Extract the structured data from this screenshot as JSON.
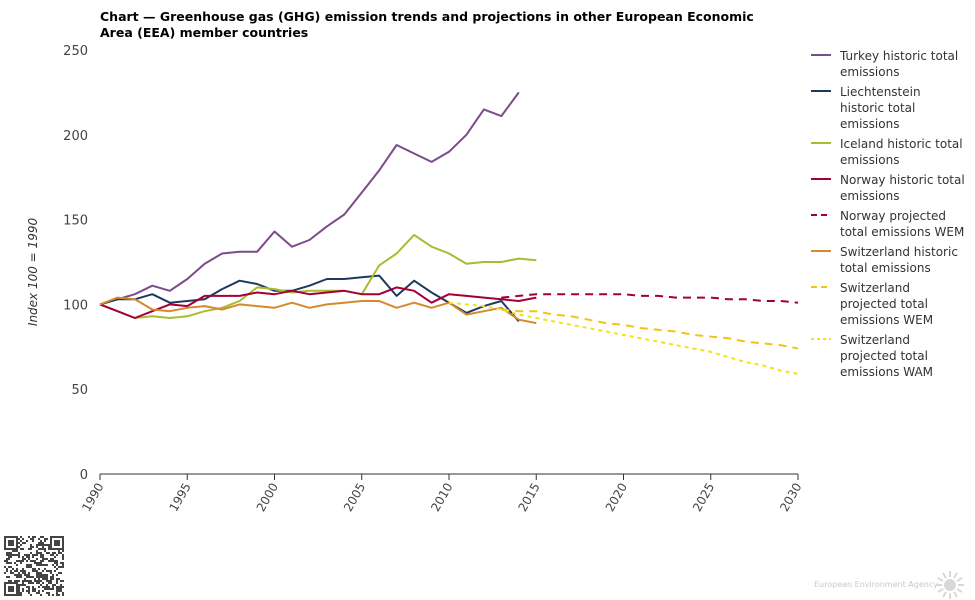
{
  "title": "Chart — Greenhouse gas (GHG) emission trends and projections in other European Economic Area (EEA) member countries",
  "footer": {
    "agency": "European Environment Agency"
  },
  "chart_data": {
    "type": "line",
    "title": "Chart — Greenhouse gas (GHG) emission trends and projections in other European Economic Area (EEA) member countries",
    "xlabel": "",
    "ylabel": "Index 100 = 1990",
    "xlim": [
      1990,
      2030
    ],
    "ylim": [
      0,
      250
    ],
    "xticks": [
      1990,
      1995,
      2000,
      2005,
      2010,
      2015,
      2020,
      2025,
      2030
    ],
    "yticks": [
      0,
      50,
      100,
      150,
      200,
      250
    ],
    "legend_position": "right",
    "grid": false,
    "series": [
      {
        "name": "Turkey historic total emissions",
        "color": "#7b4b8a",
        "style": "solid",
        "x": [
          1990,
          1991,
          1992,
          1993,
          1994,
          1995,
          1996,
          1997,
          1998,
          1999,
          2000,
          2001,
          2002,
          2003,
          2004,
          2005,
          2006,
          2007,
          2008,
          2009,
          2010,
          2011,
          2012,
          2013,
          2014
        ],
        "y": [
          100,
          103,
          106,
          111,
          108,
          115,
          124,
          130,
          131,
          131,
          143,
          134,
          138,
          146,
          153,
          166,
          179,
          194,
          189,
          184,
          190,
          200,
          215,
          211,
          225
        ]
      },
      {
        "name": "Liechtenstein historic total emissions",
        "color": "#1f3a5f",
        "style": "solid",
        "x": [
          1990,
          1991,
          1992,
          1993,
          1994,
          1995,
          1996,
          1997,
          1998,
          1999,
          2000,
          2001,
          2002,
          2003,
          2004,
          2005,
          2006,
          2007,
          2008,
          2009,
          2010,
          2011,
          2012,
          2013,
          2014
        ],
        "y": [
          100,
          103,
          103,
          106,
          101,
          102,
          103,
          109,
          114,
          112,
          108,
          108,
          111,
          115,
          115,
          116,
          117,
          105,
          114,
          107,
          101,
          95,
          99,
          102,
          90
        ]
      },
      {
        "name": "Iceland historic total emissions",
        "color": "#a8bc2e",
        "style": "solid",
        "x": [
          1990,
          1991,
          1992,
          1993,
          1994,
          1995,
          1996,
          1997,
          1998,
          1999,
          2000,
          2001,
          2002,
          2003,
          2004,
          2005,
          2006,
          2007,
          2008,
          2009,
          2010,
          2011,
          2012,
          2013,
          2014,
          2015
        ],
        "y": [
          100,
          96,
          92,
          93,
          92,
          93,
          96,
          98,
          102,
          110,
          109,
          107,
          108,
          108,
          108,
          106,
          123,
          130,
          141,
          134,
          130,
          124,
          125,
          125,
          127,
          126
        ]
      },
      {
        "name": "Norway historic total emissions",
        "color": "#a3003a",
        "style": "solid",
        "x": [
          1990,
          1991,
          1992,
          1993,
          1994,
          1995,
          1996,
          1997,
          1998,
          1999,
          2000,
          2001,
          2002,
          2003,
          2004,
          2005,
          2006,
          2007,
          2008,
          2009,
          2010,
          2011,
          2012,
          2013,
          2014,
          2015
        ],
        "y": [
          100,
          96,
          92,
          96,
          100,
          99,
          105,
          105,
          105,
          107,
          106,
          108,
          106,
          107,
          108,
          106,
          106,
          110,
          108,
          101,
          106,
          105,
          104,
          103,
          102,
          104
        ]
      },
      {
        "name": "Norway projected total emissions WEM",
        "color": "#a3003a",
        "style": "dashed-long",
        "x": [
          2013,
          2014,
          2015,
          2016,
          2017,
          2018,
          2019,
          2020,
          2021,
          2022,
          2023,
          2024,
          2025,
          2026,
          2027,
          2028,
          2029,
          2030
        ],
        "y": [
          104,
          105,
          106,
          106,
          106,
          106,
          106,
          106,
          105,
          105,
          104,
          104,
          104,
          103,
          103,
          102,
          102,
          101
        ]
      },
      {
        "name": "Switzerland historic total emissions",
        "color": "#d48a2c",
        "style": "solid",
        "x": [
          1990,
          1991,
          1992,
          1993,
          1994,
          1995,
          1996,
          1997,
          1998,
          1999,
          2000,
          2001,
          2002,
          2003,
          2004,
          2005,
          2006,
          2007,
          2008,
          2009,
          2010,
          2011,
          2012,
          2013,
          2014,
          2015
        ],
        "y": [
          100,
          104,
          103,
          97,
          96,
          98,
          99,
          97,
          100,
          99,
          98,
          101,
          98,
          100,
          101,
          102,
          102,
          98,
          101,
          98,
          101,
          94,
          96,
          98,
          91,
          89
        ]
      },
      {
        "name": "Switzerland projected total emissions WEM",
        "color": "#f0c419",
        "style": "dashed-long",
        "x": [
          2013,
          2014,
          2015,
          2016,
          2017,
          2018,
          2019,
          2020,
          2021,
          2022,
          2023,
          2024,
          2025,
          2026,
          2027,
          2028,
          2029,
          2030
        ],
        "y": [
          97,
          96,
          96,
          94,
          93,
          91,
          89,
          88,
          86,
          85,
          84,
          82,
          81,
          80,
          78,
          77,
          76,
          74
        ]
      },
      {
        "name": "Switzerland projected total emissions WAM",
        "color": "#f2e21a",
        "style": "dashed-short",
        "x": [
          2010,
          2011,
          2012,
          2013,
          2014,
          2015,
          2016,
          2017,
          2018,
          2019,
          2020,
          2021,
          2022,
          2023,
          2024,
          2025,
          2026,
          2027,
          2028,
          2029,
          2030
        ],
        "y": [
          101,
          100,
          99,
          97,
          94,
          92,
          90,
          88,
          86,
          84,
          82,
          80,
          78,
          76,
          74,
          72,
          69,
          66,
          64,
          61,
          59
        ]
      }
    ]
  }
}
